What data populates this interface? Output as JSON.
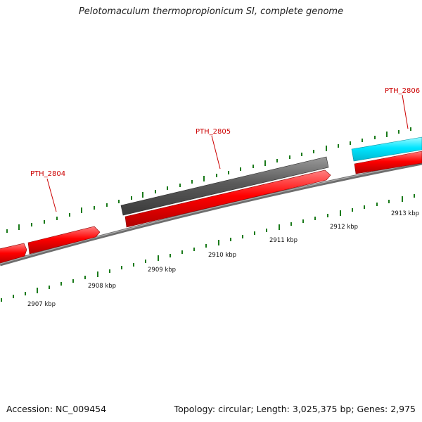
{
  "title": "Pelotomaculum thermopropionicum SI, complete genome",
  "footer": {
    "accession": "Accession: NC_009454",
    "topology": "Topology: circular; Length: 3,025,375 bp; Genes: 2,975"
  },
  "scale_labels": [
    "2907 kbp",
    "2908 kbp",
    "2909 kbp",
    "2910 kbp",
    "2911 kbp",
    "2912 kbp",
    "2913 kbp"
  ],
  "gene_labels": [
    "PTH_2804",
    "PTH_2805",
    "PTH_2806"
  ],
  "colors": {
    "gene_forward": "#ff0000",
    "gene_gray": "#5a5a5a",
    "gene_cyan": "#00e5ff",
    "label": "#cc0000",
    "tick": "#1a7a1a",
    "backbone": "#808080"
  }
}
